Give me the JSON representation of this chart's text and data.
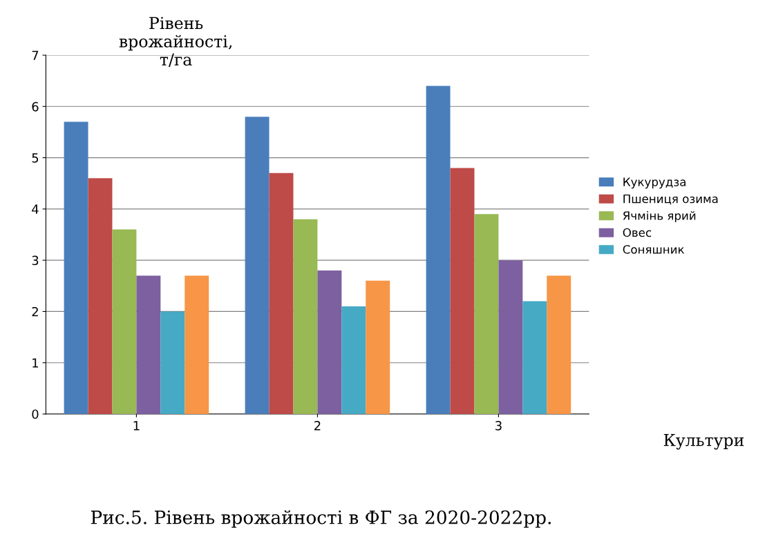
{
  "chart_data": {
    "type": "bar",
    "ylabel": "Рівень\nврожайності,\nт/га",
    "xlabel": "Культури",
    "categories": [
      "1",
      "2",
      "3"
    ],
    "series": [
      {
        "name": "Кукурудза",
        "color": "#4a7ebb",
        "values": [
          5.7,
          5.8,
          6.4
        ]
      },
      {
        "name": "Пшениця озима",
        "color": "#be4b48",
        "values": [
          4.6,
          4.7,
          4.8
        ]
      },
      {
        "name": "Ячмінь ярий",
        "color": "#98b954",
        "values": [
          3.6,
          3.8,
          3.9
        ]
      },
      {
        "name": "Овес",
        "color": "#7d60a0",
        "values": [
          2.7,
          2.8,
          3.0
        ]
      },
      {
        "name": "Соняшник",
        "color": "#46aac5",
        "values": [
          2.0,
          2.1,
          2.2
        ]
      },
      {
        "color": "#f79646",
        "values": [
          2.7,
          2.6,
          2.7
        ]
      }
    ],
    "ylim": [
      0,
      7
    ],
    "yticks": [
      0,
      1,
      2,
      3,
      4,
      5,
      6,
      7
    ],
    "grid": "y",
    "legend": "right",
    "annotations": [
      "Рис.5. Рівень врожайності в ФГ за 2020-2022рр."
    ]
  }
}
